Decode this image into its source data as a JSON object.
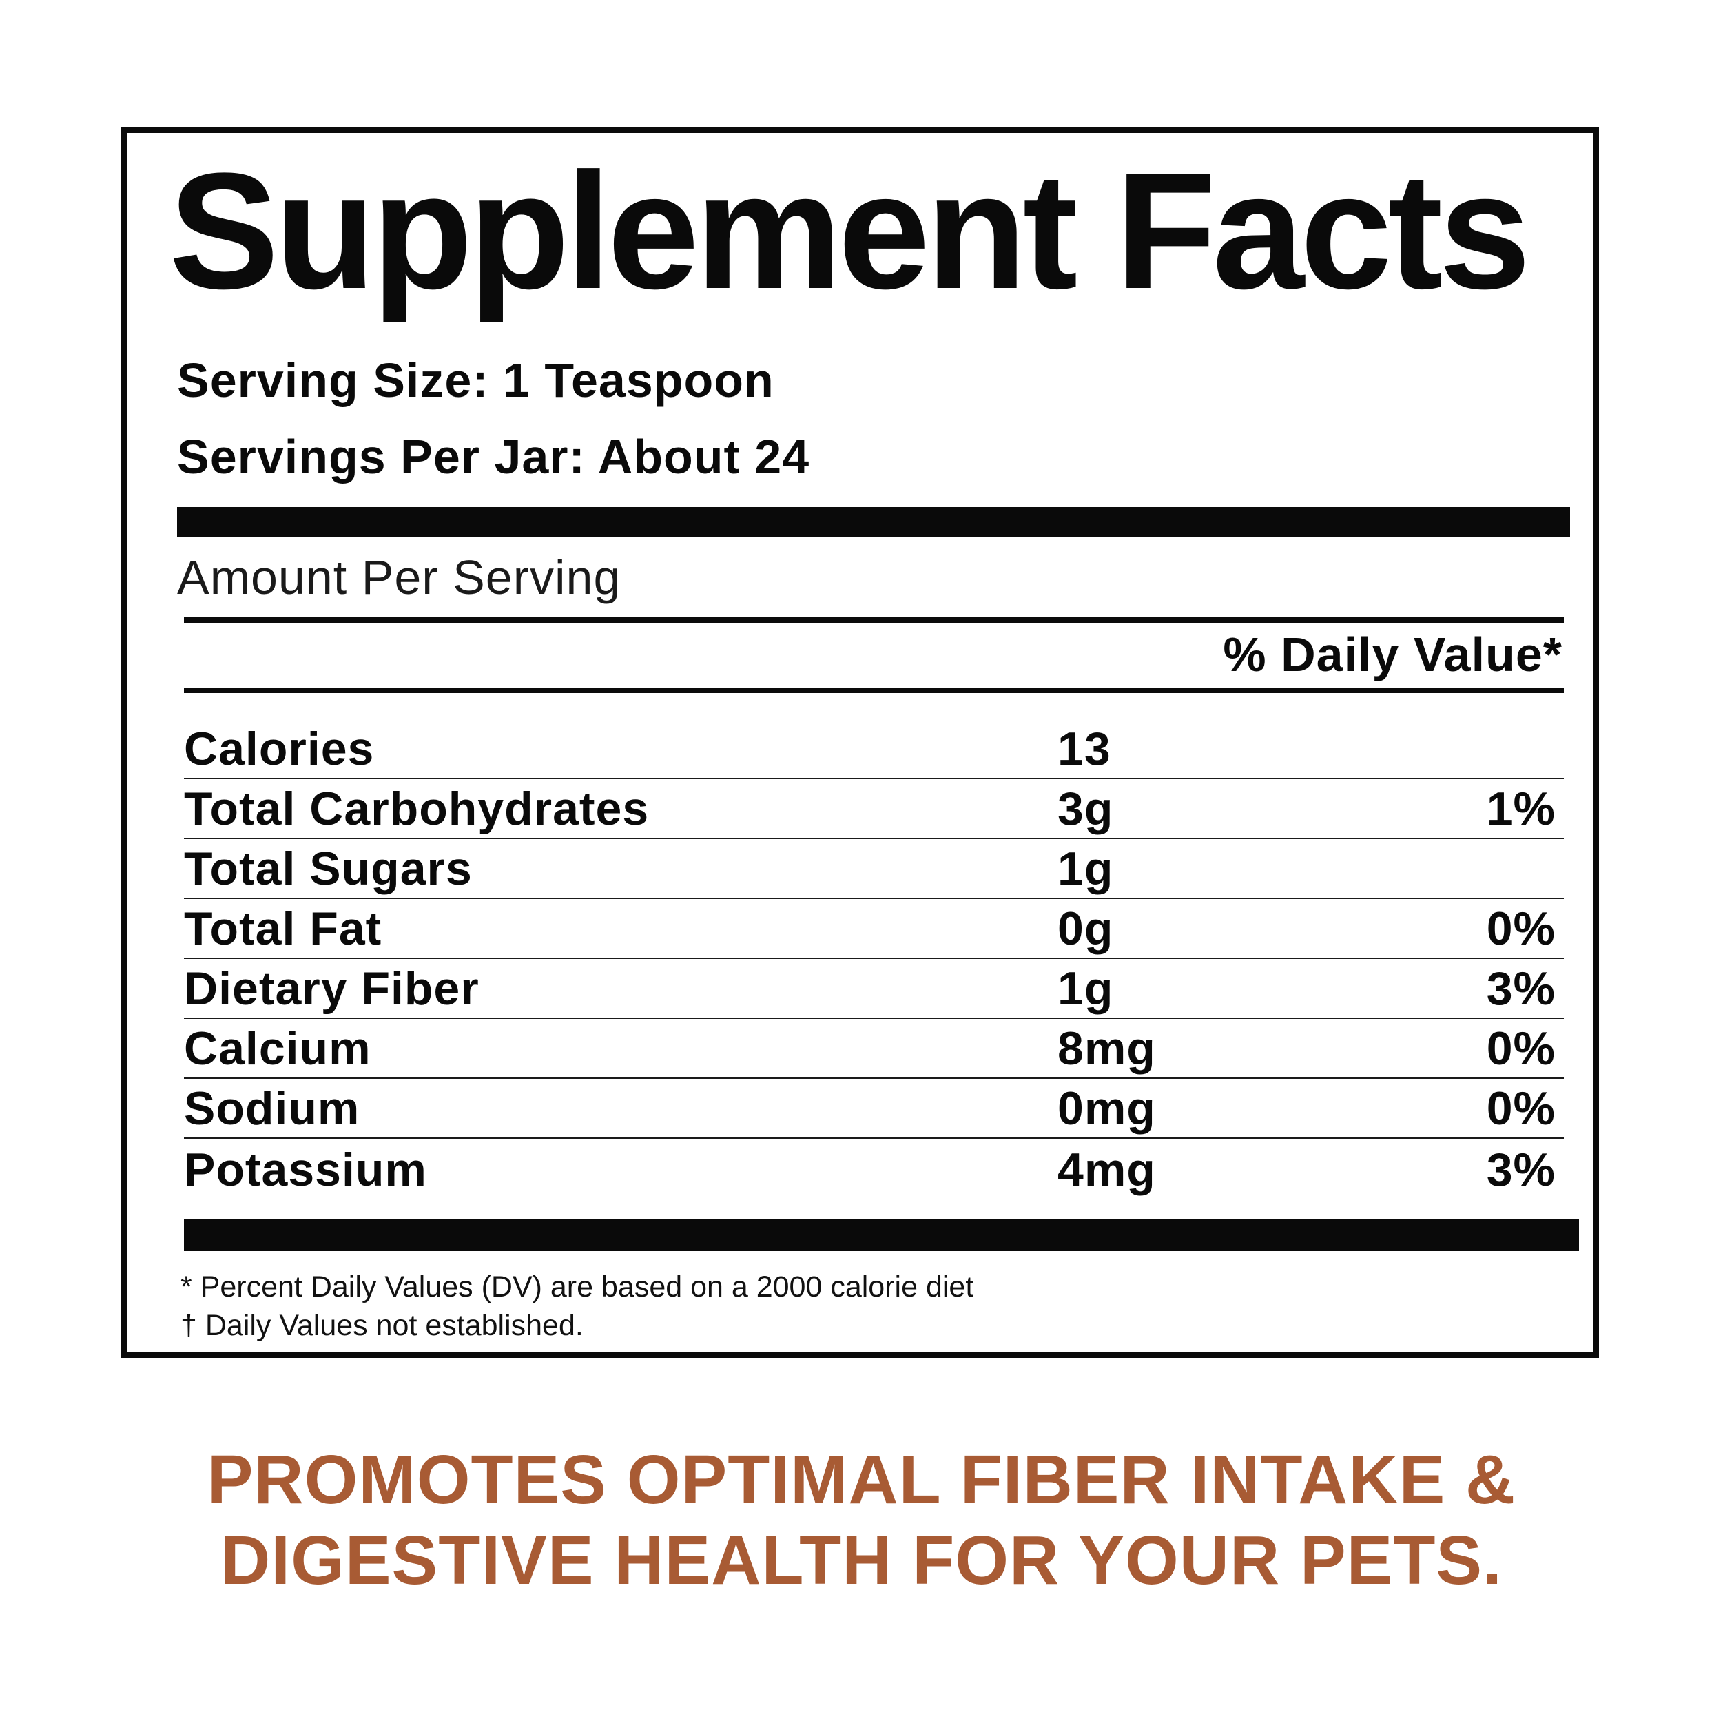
{
  "label": {
    "title": "Supplement Facts",
    "serving_size": "Serving Size: 1 Teaspoon",
    "servings_per": "Servings Per Jar: About 24",
    "amount_per_serving": "Amount Per Serving",
    "daily_value_header": "% Daily Value*",
    "rows": [
      {
        "name": "Calories",
        "amount": "13",
        "dv": ""
      },
      {
        "name": "Total Carbohydrates",
        "amount": "3g",
        "dv": "1%"
      },
      {
        "name": "Total Sugars",
        "amount": "1g",
        "dv": ""
      },
      {
        "name": "Total Fat",
        "amount": "0g",
        "dv": "0%"
      },
      {
        "name": "Dietary Fiber",
        "amount": "1g",
        "dv": "3%"
      },
      {
        "name": "Calcium",
        "amount": "8mg",
        "dv": "0%"
      },
      {
        "name": "Sodium",
        "amount": "0mg",
        "dv": "0%"
      },
      {
        "name": "Potassium",
        "amount": "4mg",
        "dv": "3%"
      }
    ],
    "footnotes": [
      "* Percent Daily Values (DV) are based on a 2000 calorie diet",
      "† Daily Values not established."
    ]
  },
  "promo": {
    "line1": "PROMOTES OPTIMAL FIBER INTAKE &",
    "line2": "DIGESTIVE HEALTH FOR YOUR PETS."
  },
  "colors": {
    "text": "#0a0a0a",
    "promo": "#a85b34",
    "background": "#ffffff"
  }
}
